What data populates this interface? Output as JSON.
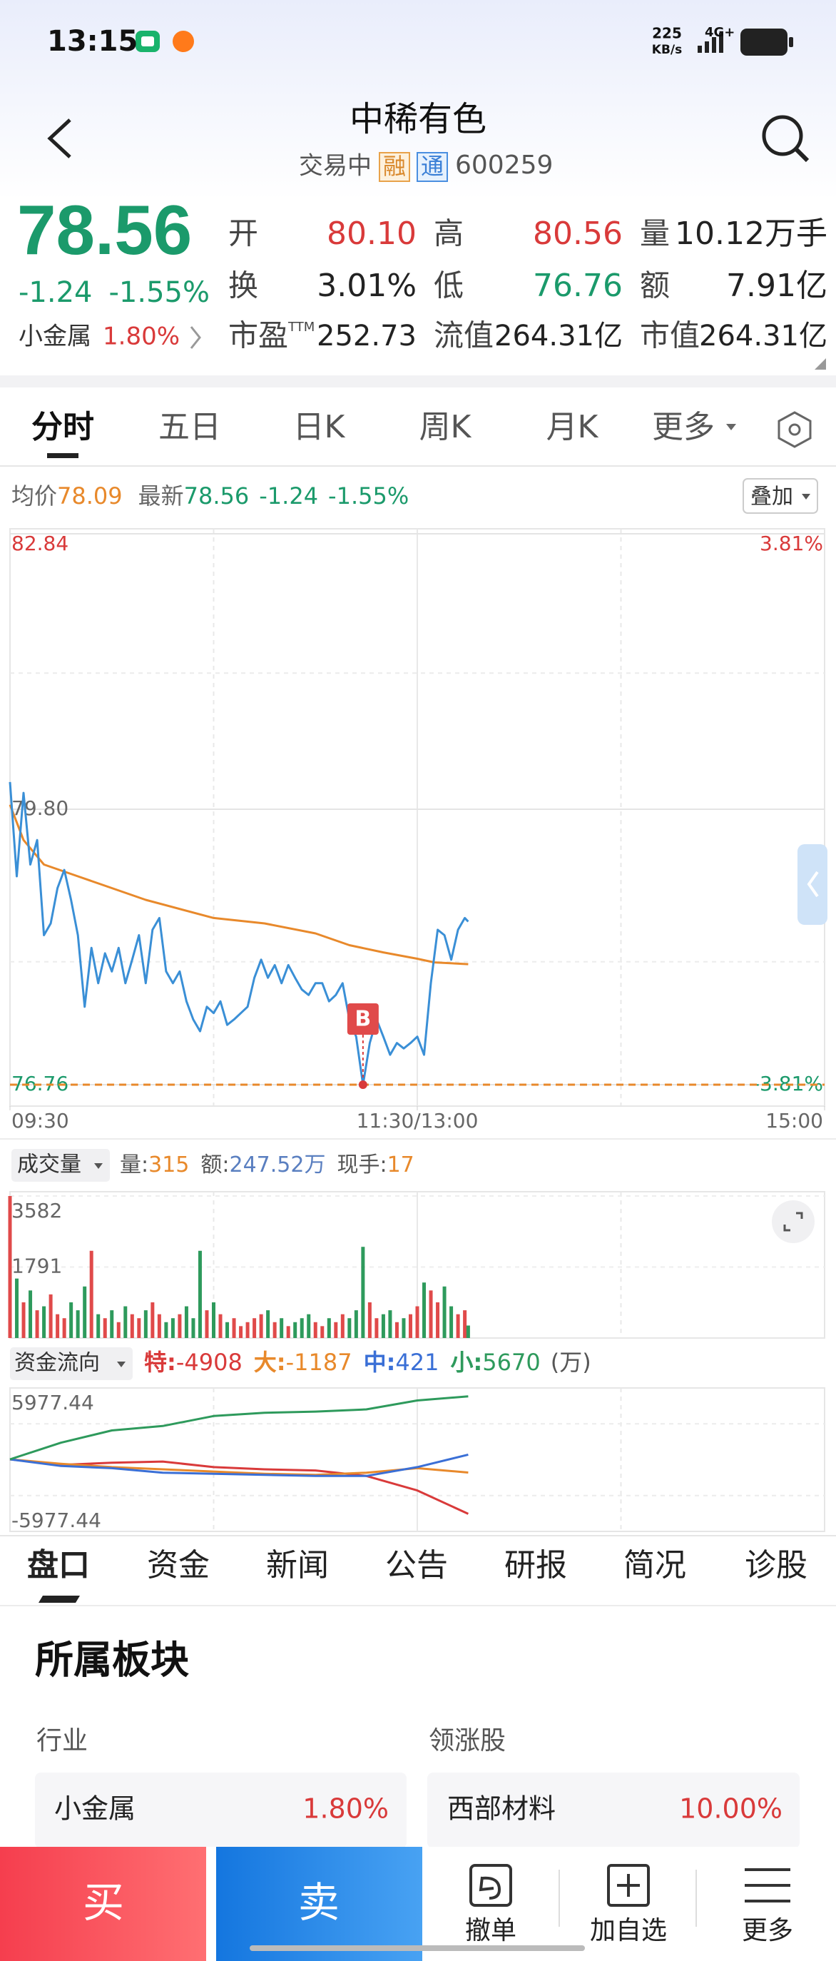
{
  "status_bar": {
    "time": "13:15",
    "speed": "225",
    "speed_unit": "KB/s",
    "network": "4G+"
  },
  "header": {
    "title": "中稀有色",
    "status": "交易中",
    "badges": [
      "融",
      "通"
    ],
    "code": "600259"
  },
  "quote": {
    "price": "78.56",
    "change": "-1.24",
    "change_pct": "-1.55%",
    "sector": "小金属",
    "sector_pct": "1.80%",
    "stats": [
      {
        "label": "开",
        "value": "80.10",
        "color": "#d93a3a"
      },
      {
        "label": "高",
        "value": "80.56",
        "color": "#d93a3a"
      },
      {
        "label": "量",
        "value": "10.12万手",
        "color": "#222222"
      },
      {
        "label": "换",
        "value": "3.01%",
        "color": "#222222"
      },
      {
        "label": "低",
        "value": "76.76",
        "color": "#1b9a6b"
      },
      {
        "label": "额",
        "value": "7.91亿",
        "color": "#222222"
      },
      {
        "label": "市盈",
        "label_sup": "TTM",
        "value": "252.73",
        "color": "#222222"
      },
      {
        "label": "流值",
        "value": "264.31亿",
        "color": "#222222"
      },
      {
        "label": "市值",
        "value": "264.31亿",
        "color": "#222222"
      }
    ]
  },
  "tabs": [
    "分时",
    "五日",
    "日K",
    "周K",
    "月K",
    "更多"
  ],
  "overlay": "叠加",
  "chart_data": [
    {
      "type": "line",
      "x": [
        "09:30",
        "09:32",
        "09:34",
        "09:36",
        "09:38",
        "09:40",
        "09:42",
        "09:44",
        "09:46",
        "09:48",
        "09:50",
        "09:52",
        "09:54",
        "09:56",
        "09:58",
        "10:00",
        "10:02",
        "10:04",
        "10:06",
        "10:08",
        "10:10",
        "10:12",
        "10:14",
        "10:16",
        "10:18",
        "10:20",
        "10:22",
        "10:24",
        "10:26",
        "10:28",
        "10:30",
        "10:32",
        "10:34",
        "10:36",
        "10:38",
        "10:40",
        "10:42",
        "10:44",
        "10:46",
        "10:48",
        "10:50",
        "10:52",
        "10:54",
        "10:56",
        "10:58",
        "11:00",
        "11:02",
        "11:04",
        "11:06",
        "11:08",
        "11:10",
        "11:12",
        "11:14",
        "11:16",
        "11:18",
        "11:20",
        "11:22",
        "11:24",
        "11:26",
        "11:28",
        "11:30",
        "13:02",
        "13:04",
        "13:06",
        "13:08",
        "13:10",
        "13:12",
        "13:14",
        "13:15"
      ],
      "series": [
        {
          "name": "均价",
          "color": "#e8892b",
          "x": [
            "09:30",
            "09:34",
            "09:40",
            "09:50",
            "10:00",
            "10:10",
            "10:30",
            "10:45",
            "11:00",
            "11:10",
            "11:20",
            "11:30",
            "13:05",
            "13:15"
          ],
          "values": [
            79.85,
            79.46,
            79.19,
            79.06,
            78.93,
            78.8,
            78.6,
            78.54,
            78.43,
            78.3,
            78.22,
            78.15,
            78.11,
            78.09
          ]
        },
        {
          "name": "最新",
          "color": "#3a8fd6",
          "values": [
            80.1,
            79.06,
            79.98,
            79.19,
            79.46,
            78.41,
            78.54,
            78.93,
            79.13,
            78.8,
            78.41,
            77.62,
            78.27,
            77.88,
            78.21,
            78.01,
            78.27,
            77.88,
            78.14,
            78.41,
            77.88,
            78.47,
            78.6,
            78.01,
            77.88,
            78.01,
            77.68,
            77.48,
            77.35,
            77.62,
            77.55,
            77.68,
            77.42,
            77.48,
            77.55,
            77.62,
            77.94,
            78.14,
            77.94,
            78.08,
            77.88,
            78.08,
            77.94,
            77.81,
            77.75,
            77.88,
            77.88,
            77.68,
            77.75,
            77.88,
            77.48,
            77.29,
            76.76,
            77.22,
            77.48,
            77.29,
            77.09,
            77.22,
            77.16,
            77.22,
            77.29,
            77.09,
            77.88,
            78.47,
            78.41,
            78.14,
            78.47,
            78.6,
            78.56
          ]
        }
      ],
      "xlim": [
        "09:30",
        "15:00"
      ],
      "xticks": [
        "09:30",
        "11:30/13:00",
        "15:00"
      ],
      "ylim": [
        76.76,
        82.84
      ],
      "yticks": [
        82.84,
        {
          "value": 79.8,
          "label": "79.80"
        },
        76.76
      ],
      "y2lim": [
        -3.81,
        3.81
      ],
      "y2ticks": [
        {
          "value": 3.81,
          "label": "3.81%"
        },
        {
          "value": -3.81,
          "label": "-3.81%"
        }
      ],
      "reference_line": {
        "value": 76.76,
        "color": "#e8892b"
      },
      "annotations": [
        {
          "text": "B",
          "x": "11:14",
          "value": 76.76
        }
      ],
      "grid": true
    },
    {
      "type": "bar",
      "title": "成交量",
      "up_color": "#e04a4a",
      "down_color": "#2e9a5c",
      "x": [
        "09:30",
        "09:32",
        "09:34",
        "09:36",
        "09:38",
        "09:40",
        "09:42",
        "09:44",
        "09:46",
        "09:48",
        "09:50",
        "09:52",
        "09:54",
        "09:56",
        "09:58",
        "10:00",
        "10:02",
        "10:04",
        "10:06",
        "10:08",
        "10:10",
        "10:12",
        "10:14",
        "10:16",
        "10:18",
        "10:20",
        "10:22",
        "10:24",
        "10:26",
        "10:28",
        "10:30",
        "10:32",
        "10:34",
        "10:36",
        "10:38",
        "10:40",
        "10:42",
        "10:44",
        "10:46",
        "10:48",
        "10:50",
        "10:52",
        "10:54",
        "10:56",
        "10:58",
        "11:00",
        "11:02",
        "11:04",
        "11:06",
        "11:08",
        "11:10",
        "11:12",
        "11:14",
        "11:16",
        "11:18",
        "11:20",
        "11:22",
        "11:24",
        "11:26",
        "11:28",
        "11:30",
        "13:02",
        "13:04",
        "13:06",
        "13:08",
        "13:10",
        "13:12",
        "13:14",
        "13:15"
      ],
      "values": [
        3582,
        1500,
        900,
        1200,
        700,
        800,
        1100,
        600,
        500,
        900,
        700,
        1300,
        2200,
        600,
        500,
        700,
        400,
        800,
        600,
        500,
        700,
        900,
        600,
        400,
        500,
        600,
        800,
        500,
        2200,
        700,
        900,
        600,
        400,
        500,
        300,
        400,
        500,
        600,
        700,
        400,
        500,
        300,
        400,
        500,
        600,
        400,
        300,
        500,
        400,
        600,
        500,
        700,
        2300,
        900,
        500,
        600,
        700,
        400,
        500,
        600,
        800,
        1400,
        1200,
        900,
        1300,
        800,
        600,
        700,
        315
      ],
      "stats": [
        {
          "label": "量:",
          "color": "#e8892b"
        },
        {
          "label": "额:",
          "value": "247.52万",
          "color": "#5a7fc0"
        },
        {
          "label": "现手:",
          "value": 17,
          "color": "#e8892b"
        }
      ],
      "xlim": [
        "09:30",
        "15:00"
      ],
      "ylim": [
        0,
        3582
      ],
      "yticks": [
        1791,
        3582
      ]
    },
    {
      "type": "line",
      "title": "资金流向",
      "unit": "(万)",
      "x": [
        "09:30",
        "09:45",
        "10:00",
        "10:15",
        "10:30",
        "10:45",
        "11:00",
        "11:15",
        "11:30",
        "13:15"
      ],
      "series": [
        {
          "name": "特:",
          "color": "#d93a3a",
          "values": [
            0,
            -500,
            -300,
            -200,
            -700,
            -900,
            -1000,
            -1500,
            -2800,
            -4908
          ]
        },
        {
          "name": "大:",
          "color": "#e8892b",
          "values": [
            0,
            -400,
            -700,
            -900,
            -1100,
            -1300,
            -1400,
            -1200,
            -800,
            -1187
          ]
        },
        {
          "name": "中:",
          "color": "#3a6fd6",
          "values": [
            0,
            -600,
            -800,
            -1200,
            -1300,
            -1400,
            -1500,
            -1500,
            -700,
            421
          ]
        },
        {
          "name": "小:",
          "color": "#2e9a5c",
          "values": [
            0,
            1500,
            2600,
            3000,
            3900,
            4200,
            4300,
            4500,
            5300,
            5670
          ]
        }
      ],
      "xlim": [
        "09:30",
        "15:00"
      ],
      "ylim": [
        -5977.44,
        5977.44
      ],
      "yticks": [
        5977.44,
        -5977.44
      ]
    }
  ],
  "bottom_tabs": [
    "盘口",
    "资金",
    "新闻",
    "公告",
    "研报",
    "简况",
    "诊股"
  ],
  "section": {
    "title": "所属板块",
    "industry_label": "行业",
    "leader_label": "领涨股",
    "industry": {
      "name": "小金属",
      "pct": "1.80%"
    },
    "leader": {
      "name": "西部材料",
      "pct": "10.00%"
    }
  },
  "actions": {
    "buy": "买",
    "sell": "卖",
    "buttons": [
      "撤单",
      "加自选",
      "更多"
    ]
  }
}
